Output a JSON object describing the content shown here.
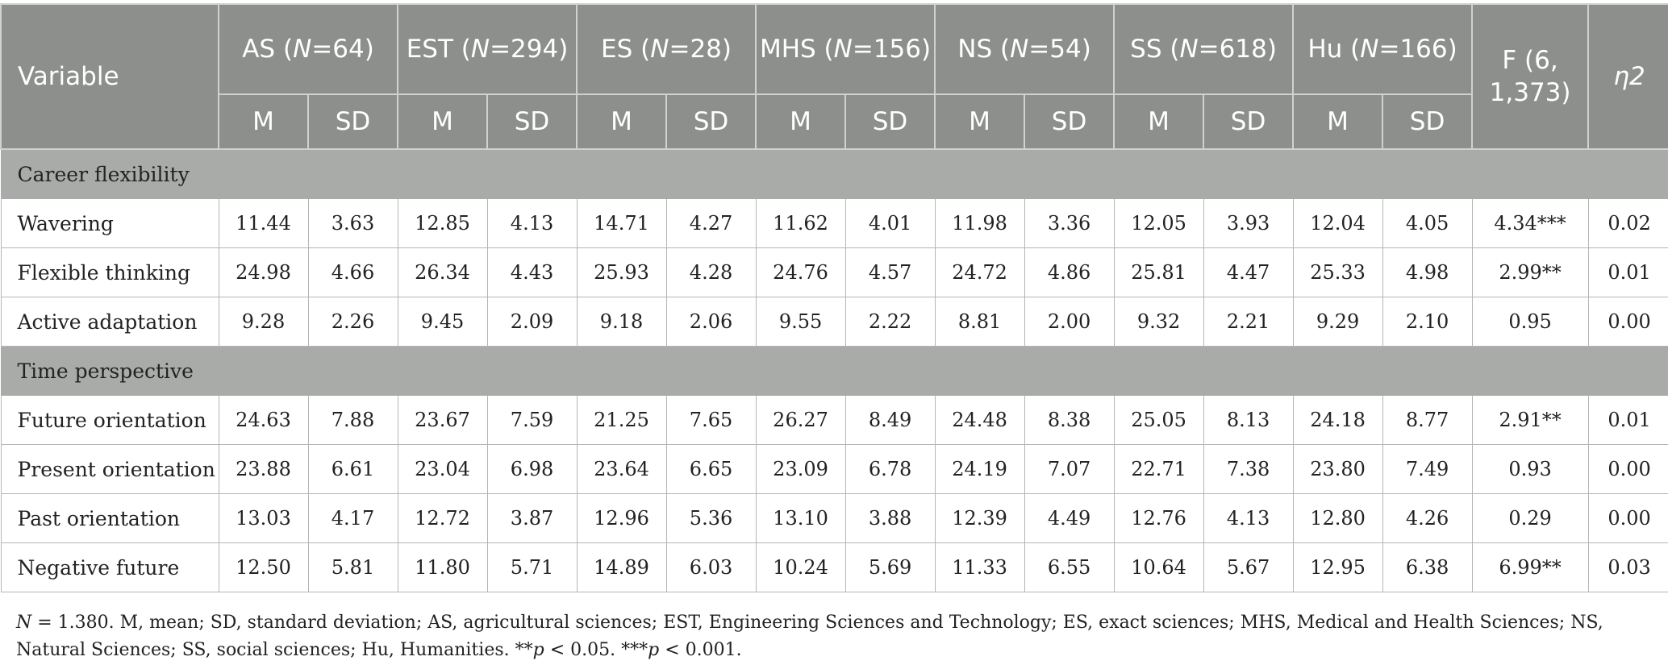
{
  "header": {
    "variable_label": "Variable",
    "groups": [
      {
        "abbr": "AS",
        "n_label": "N",
        "n_value": "=64"
      },
      {
        "abbr": "EST",
        "n_label": "N",
        "n_value": "=294"
      },
      {
        "abbr": "ES",
        "n_label": "N",
        "n_value": "=28"
      },
      {
        "abbr": "MHS",
        "n_label": "N",
        "n_value": "=156"
      },
      {
        "abbr": "NS",
        "n_label": "N",
        "n_value": "=54"
      },
      {
        "abbr": "SS",
        "n_label": "N",
        "n_value": "=618"
      },
      {
        "abbr": "Hu",
        "n_label": "N",
        "n_value": "=166"
      }
    ],
    "m_label": "M",
    "sd_label": "SD",
    "f_label": "F (6, 1,373)",
    "eta_label": "η2"
  },
  "sections": [
    {
      "title": "Career flexibility",
      "rows": [
        {
          "label": "Wavering",
          "values": [
            "11.44",
            "3.63",
            "12.85",
            "4.13",
            "14.71",
            "4.27",
            "11.62",
            "4.01",
            "11.98",
            "3.36",
            "12.05",
            "3.93",
            "12.04",
            "4.05"
          ],
          "f": "4.34***",
          "eta": "0.02"
        },
        {
          "label": "Flexible thinking",
          "values": [
            "24.98",
            "4.66",
            "26.34",
            "4.43",
            "25.93",
            "4.28",
            "24.76",
            "4.57",
            "24.72",
            "4.86",
            "25.81",
            "4.47",
            "25.33",
            "4.98"
          ],
          "f": "2.99**",
          "eta": "0.01"
        },
        {
          "label": "Active adaptation",
          "values": [
            "9.28",
            "2.26",
            "9.45",
            "2.09",
            "9.18",
            "2.06",
            "9.55",
            "2.22",
            "8.81",
            "2.00",
            "9.32",
            "2.21",
            "9.29",
            "2.10"
          ],
          "f": "0.95",
          "eta": "0.00"
        }
      ]
    },
    {
      "title": "Time perspective",
      "rows": [
        {
          "label": "Future orientation",
          "values": [
            "24.63",
            "7.88",
            "23.67",
            "7.59",
            "21.25",
            "7.65",
            "26.27",
            "8.49",
            "24.48",
            "8.38",
            "25.05",
            "8.13",
            "24.18",
            "8.77"
          ],
          "f": "2.91**",
          "eta": "0.01"
        },
        {
          "label": "Present orientation",
          "values": [
            "23.88",
            "6.61",
            "23.04",
            "6.98",
            "23.64",
            "6.65",
            "23.09",
            "6.78",
            "24.19",
            "7.07",
            "22.71",
            "7.38",
            "23.80",
            "7.49"
          ],
          "f": "0.93",
          "eta": "0.00"
        },
        {
          "label": "Past orientation",
          "values": [
            "13.03",
            "4.17",
            "12.72",
            "3.87",
            "12.96",
            "5.36",
            "13.10",
            "3.88",
            "12.39",
            "4.49",
            "12.76",
            "4.13",
            "12.80",
            "4.26"
          ],
          "f": "0.29",
          "eta": "0.00"
        },
        {
          "label": "Negative future",
          "values": [
            "12.50",
            "5.81",
            "11.80",
            "5.71",
            "14.89",
            "6.03",
            "10.24",
            "5.69",
            "11.33",
            "6.55",
            "10.64",
            "5.67",
            "12.95",
            "6.38"
          ],
          "f": "6.99**",
          "eta": "0.03"
        }
      ]
    }
  ],
  "footnote": {
    "n_italic": "N",
    "main": " = 1.380. M, mean; SD, standard deviation; AS, agricultural sciences; EST, Engineering Sciences and Technology; ES, exact sciences; MHS, Medical and Health Sciences; NS, Natural Sciences; SS, social sciences; Hu, Humanities. **",
    "p1_italic": "p",
    "p1_text": " < 0.05. ***",
    "p2_italic": "p",
    "p2_text": " < 0.001."
  }
}
